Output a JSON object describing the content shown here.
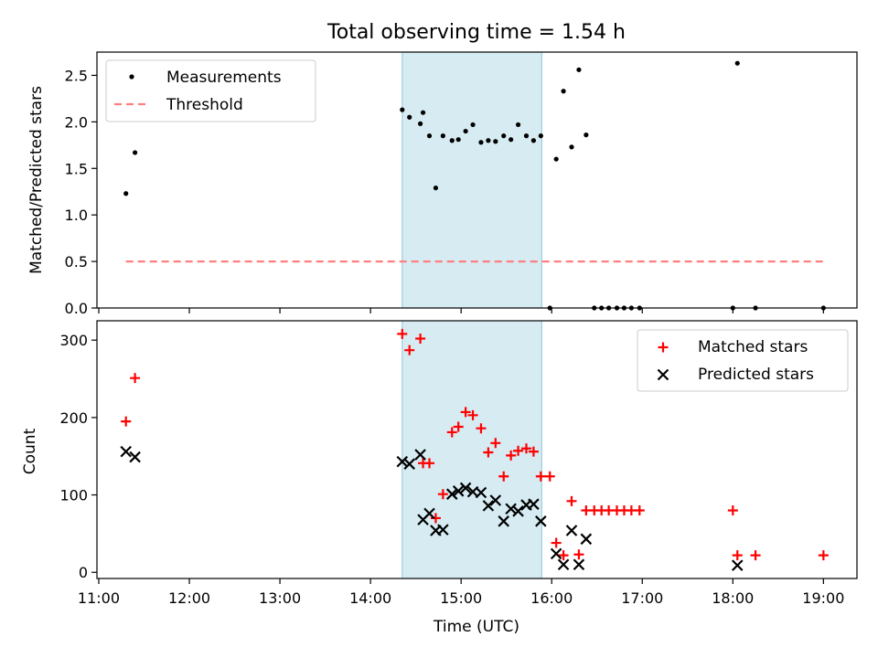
{
  "figure": {
    "title": "Total observing time = 1.54 h",
    "xlabel": "Time (UTC)",
    "x_ticks": [
      "11:00",
      "12:00",
      "13:00",
      "14:00",
      "15:00",
      "16:00",
      "17:00",
      "18:00",
      "19:00"
    ],
    "xlim_hours": [
      10.98,
      19.37
    ],
    "shaded_interval_hours": [
      14.35,
      15.89
    ],
    "shade_color": "#add8e6"
  },
  "chart_data": [
    {
      "type": "scatter",
      "ylabel": "Matched/Predicted stars",
      "ylim": [
        0,
        2.75
      ],
      "y_ticks": [
        "0.0",
        "0.5",
        "1.0",
        "1.5",
        "2.0",
        "2.5"
      ],
      "legend_position": "upper-left",
      "series": [
        {
          "name": "Measurements",
          "color": "#000000",
          "marker": "dot",
          "x": [
            11.3,
            11.4,
            14.35,
            14.43,
            14.55,
            14.58,
            14.65,
            14.72,
            14.8,
            14.9,
            14.97,
            15.05,
            15.13,
            15.22,
            15.3,
            15.38,
            15.47,
            15.55,
            15.63,
            15.72,
            15.8,
            15.88,
            15.98,
            16.05,
            16.13,
            16.22,
            16.3,
            16.38,
            16.47,
            16.55,
            16.63,
            16.72,
            16.8,
            16.88,
            16.97,
            18.0,
            18.05,
            18.25,
            19.0
          ],
          "y": [
            1.23,
            1.67,
            2.13,
            2.05,
            1.98,
            2.1,
            1.85,
            1.29,
            1.85,
            1.8,
            1.81,
            1.9,
            1.97,
            1.78,
            1.8,
            1.79,
            1.85,
            1.81,
            1.97,
            1.85,
            1.8,
            1.85,
            0.0,
            1.6,
            2.33,
            1.73,
            2.56,
            1.86,
            0.0,
            0.0,
            0.0,
            0.0,
            0.0,
            0.0,
            0.0,
            0.0,
            2.63,
            0.0,
            0.0
          ]
        },
        {
          "name": "Threshold",
          "color": "#ff7f7f",
          "style": "dashed",
          "x": [
            11.3,
            19.0
          ],
          "y": [
            0.5,
            0.5
          ]
        }
      ]
    },
    {
      "type": "scatter",
      "ylabel": "Count",
      "ylim": [
        -8,
        325
      ],
      "y_ticks": [
        "0",
        "100",
        "200",
        "300"
      ],
      "legend_position": "upper-right",
      "series": [
        {
          "name": "Matched stars",
          "color": "#ff0000",
          "marker": "plus",
          "x": [
            11.3,
            11.4,
            14.35,
            14.43,
            14.55,
            14.58,
            14.65,
            14.72,
            14.8,
            14.9,
            14.97,
            15.05,
            15.13,
            15.22,
            15.3,
            15.38,
            15.47,
            15.55,
            15.63,
            15.72,
            15.8,
            15.88,
            15.98,
            16.05,
            16.13,
            16.22,
            16.3,
            16.38,
            16.47,
            16.55,
            16.63,
            16.72,
            16.8,
            16.88,
            16.97,
            18.0,
            18.05,
            18.25,
            19.0
          ],
          "y": [
            195,
            251,
            308,
            287,
            302,
            141,
            141,
            70,
            101,
            181,
            188,
            207,
            203,
            186,
            155,
            167,
            124,
            151,
            157,
            160,
            156,
            124,
            124,
            38,
            22,
            92,
            23,
            80,
            80,
            80,
            80,
            80,
            80,
            80,
            80,
            80,
            22,
            22,
            22
          ]
        },
        {
          "name": "Predicted stars",
          "color": "#000000",
          "marker": "x",
          "x": [
            11.3,
            11.4,
            14.35,
            14.43,
            14.55,
            14.58,
            14.65,
            14.72,
            14.8,
            14.9,
            14.97,
            15.05,
            15.13,
            15.22,
            15.3,
            15.38,
            15.47,
            15.55,
            15.63,
            15.72,
            15.8,
            15.88,
            16.05,
            16.13,
            16.22,
            16.3,
            16.38,
            18.05
          ],
          "y": [
            156,
            149,
            143,
            140,
            152,
            68,
            76,
            54,
            55,
            101,
            105,
            109,
            104,
            103,
            86,
            93,
            66,
            82,
            79,
            87,
            88,
            66,
            24,
            10,
            54,
            10,
            43,
            9
          ]
        }
      ]
    }
  ]
}
